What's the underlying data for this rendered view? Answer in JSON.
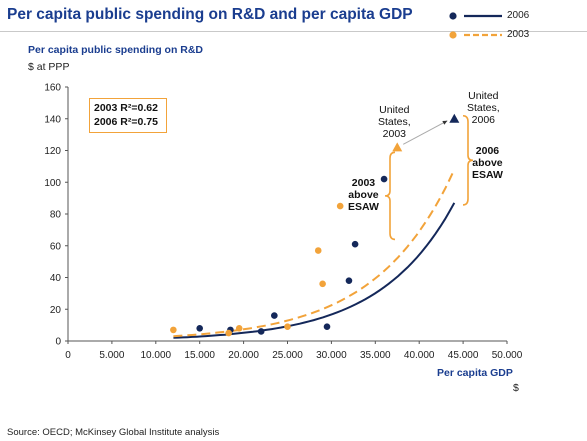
{
  "header": {
    "title": "Per capita public spending on R&D and per capita GDP"
  },
  "legend": [
    {
      "name": "2006",
      "color": "#14285a"
    },
    {
      "name": "2003",
      "color": "#f2a33a"
    }
  ],
  "r_squared": {
    "line_2003": "2003 R²=0.62",
    "line_2006": "2006 R²=0.75"
  },
  "annotations": {
    "us_2003": [
      "United",
      "States,",
      "2003"
    ],
    "us_2006": [
      "United",
      "States,",
      "2006"
    ],
    "above_2003": [
      "2003",
      "above",
      "ESAW"
    ],
    "above_2006": [
      "2006",
      "above",
      "ESAW"
    ]
  },
  "footer": {
    "source": "Source: OECD; McKinsey Global Institute analysis"
  },
  "chart_data": {
    "type": "scatter",
    "title": "Per capita public spending on R&D and per capita GDP",
    "xlabel": "Per capita GDP",
    "xunit": "$",
    "ylabel": "Per capita public spending on R&D",
    "yunit": "$ at PPP",
    "xlim": [
      0,
      50000
    ],
    "ylim": [
      0,
      160
    ],
    "x_ticks": [
      "0",
      "5.000",
      "10.000",
      "15.000",
      "20.000",
      "25.000",
      "30.000",
      "35.000",
      "40.000",
      "45.000",
      "50.000"
    ],
    "y_ticks": [
      "0",
      "20",
      "40",
      "60",
      "80",
      "100",
      "120",
      "140",
      "160"
    ],
    "series": [
      {
        "name": "2006",
        "color": "#14285a",
        "points": [
          [
            15000,
            8
          ],
          [
            18500,
            7
          ],
          [
            22000,
            6
          ],
          [
            23500,
            16
          ],
          [
            29500,
            9
          ],
          [
            32000,
            38
          ],
          [
            32700,
            61
          ],
          [
            36000,
            102
          ]
        ],
        "highlight": {
          "x": 44000,
          "y": 140,
          "label": "United States, 2006"
        },
        "trend": {
          "type": "exponential",
          "x_start": 12000,
          "x_end": 44000,
          "y_start": 2,
          "y_end": 87,
          "style": "solid"
        }
      },
      {
        "name": "2003",
        "color": "#f2a33a",
        "points": [
          [
            12000,
            7
          ],
          [
            18300,
            5
          ],
          [
            19500,
            8
          ],
          [
            25000,
            9
          ],
          [
            28500,
            57
          ],
          [
            29000,
            36
          ],
          [
            31000,
            85
          ]
        ],
        "highlight": {
          "x": 37500,
          "y": 122,
          "label": "United States, 2003"
        },
        "trend": {
          "type": "exponential",
          "x_start": 12000,
          "x_end": 44000,
          "y_start": 3,
          "y_end": 108,
          "style": "dashed"
        }
      }
    ],
    "grid": false,
    "legend_position": "top-right"
  }
}
